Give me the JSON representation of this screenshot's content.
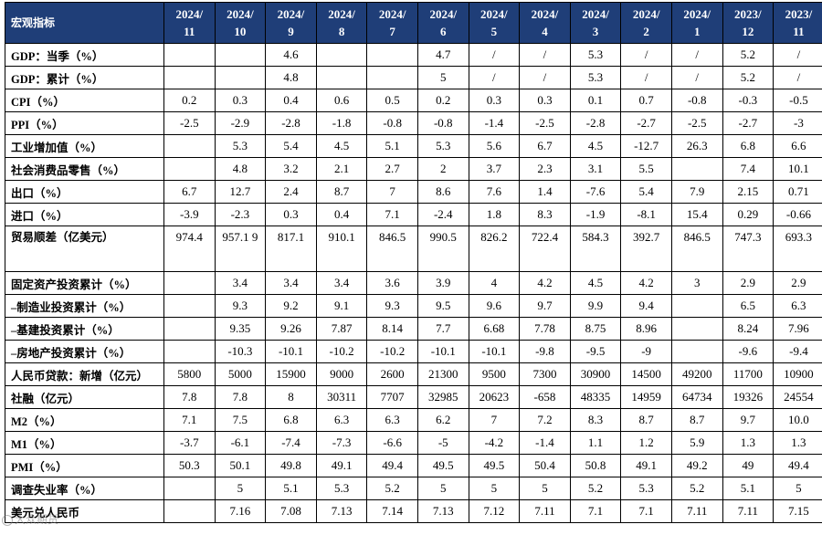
{
  "table": {
    "corner": "宏观指标",
    "columns": [
      [
        "2024/",
        "11"
      ],
      [
        "2024/",
        "10"
      ],
      [
        "2024/",
        "9"
      ],
      [
        "2024/",
        "8"
      ],
      [
        "2024/",
        "7"
      ],
      [
        "2024/",
        "6"
      ],
      [
        "2024/",
        "5"
      ],
      [
        "2024/",
        "4"
      ],
      [
        "2024/",
        "3"
      ],
      [
        "2024/",
        "2"
      ],
      [
        "2024/",
        "1"
      ],
      [
        "2023/",
        "12"
      ],
      [
        "2023/",
        "11"
      ]
    ],
    "rows": [
      {
        "label": "GDP：当季（%）",
        "values": [
          "",
          "",
          "4.6",
          "",
          "",
          "4.7",
          "/",
          "/",
          "5.3",
          "/",
          "/",
          "5.2",
          "/"
        ]
      },
      {
        "label": "GDP：累计（%）",
        "values": [
          "",
          "",
          "4.8",
          "",
          "",
          "5",
          "/",
          "/",
          "5.3",
          "/",
          "/",
          "5.2",
          "/"
        ]
      },
      {
        "label": "CPI（%）",
        "values": [
          "0.2",
          "0.3",
          "0.4",
          "0.6",
          "0.5",
          "0.2",
          "0.3",
          "0.3",
          "0.1",
          "0.7",
          "-0.8",
          "-0.3",
          "-0.5"
        ]
      },
      {
        "label": "PPI（%）",
        "values": [
          "-2.5",
          "-2.9",
          "-2.8",
          "-1.8",
          "-0.8",
          "-0.8",
          "-1.4",
          "-2.5",
          "-2.8",
          "-2.7",
          "-2.5",
          "-2.7",
          "-3"
        ]
      },
      {
        "label": "工业增加值（%）",
        "values": [
          "",
          "5.3",
          "5.4",
          "4.5",
          "5.1",
          "5.3",
          "5.6",
          "6.7",
          "4.5",
          "-12.7",
          "26.3",
          "6.8",
          "6.6"
        ]
      },
      {
        "label": "社会消费品零售（%）",
        "values": [
          "",
          "4.8",
          "3.2",
          "2.1",
          "2.7",
          "2",
          "3.7",
          "2.3",
          "3.1",
          "5.5",
          "",
          "7.4",
          "10.1"
        ]
      },
      {
        "label": "出口（%）",
        "values": [
          "6.7",
          "12.7",
          "2.4",
          "8.7",
          "7",
          "8.6",
          "7.6",
          "1.4",
          "-7.6",
          "5.4",
          "7.9",
          "2.15",
          "0.71"
        ]
      },
      {
        "label": "进口（%）",
        "values": [
          "-3.9",
          "-2.3",
          "0.3",
          "0.4",
          "7.1",
          "-2.4",
          "1.8",
          "8.3",
          "-1.9",
          "-8.1",
          "15.4",
          "0.29",
          "-0.66"
        ]
      },
      {
        "label": "贸易顺差（亿美元）",
        "tall": true,
        "values": [
          "974.4",
          "957.1 9",
          "817.1",
          "910.1",
          "846.5",
          "990.5",
          "826.2",
          "722.4",
          "584.3",
          "392.7",
          "846.5",
          "747.3",
          "693.3"
        ]
      },
      {
        "label": "固定资产投资累计（%）",
        "values": [
          "",
          "3.4",
          "3.4",
          "3.4",
          "3.6",
          "3.9",
          "4",
          "4.2",
          "4.5",
          "4.2",
          "3",
          "2.9",
          "2.9"
        ]
      },
      {
        "label": "–制造业投资累计（%）",
        "values": [
          "",
          "9.3",
          "9.2",
          "9.1",
          "9.3",
          "9.5",
          "9.6",
          "9.7",
          "9.9",
          "9.4",
          "",
          "6.5",
          "6.3"
        ]
      },
      {
        "label": "–基建投资累计（%）",
        "values": [
          "",
          "9.35",
          "9.26",
          "7.87",
          "8.14",
          "7.7",
          "6.68",
          "7.78",
          "8.75",
          "8.96",
          "",
          "8.24",
          "7.96"
        ]
      },
      {
        "label": "–房地产投资累计（%）",
        "values": [
          "",
          "-10.3",
          "-10.1",
          "-10.2",
          "-10.2",
          "-10.1",
          "-10.1",
          "-9.8",
          "-9.5",
          "-9",
          "",
          "-9.6",
          "-9.4"
        ]
      },
      {
        "label": "人民币贷款：新增（亿元）",
        "values": [
          "5800",
          "5000",
          "15900",
          "9000",
          "2600",
          "21300",
          "9500",
          "7300",
          "30900",
          "14500",
          "49200",
          "11700",
          "10900"
        ]
      },
      {
        "label": "社融（亿元）",
        "values": [
          "7.8",
          "7.8",
          "8",
          "30311",
          "7707",
          "32985",
          "20623",
          "-658",
          "48335",
          "14959",
          "64734",
          "19326",
          "24554"
        ]
      },
      {
        "label": "M2（%）",
        "values": [
          "7.1",
          "7.5",
          "6.8",
          "6.3",
          "6.3",
          "6.2",
          "7",
          "7.2",
          "8.3",
          "8.7",
          "8.7",
          "9.7",
          "10.0"
        ]
      },
      {
        "label": "M1（%）",
        "values": [
          "-3.7",
          "-6.1",
          "-7.4",
          "-7.3",
          "-6.6",
          "-5",
          "-4.2",
          "-1.4",
          "1.1",
          "1.2",
          "5.9",
          "1.3",
          "1.3"
        ]
      },
      {
        "label": "PMI（%）",
        "values": [
          "50.3",
          "50.1",
          "49.8",
          "49.1",
          "49.4",
          "49.5",
          "49.5",
          "50.4",
          "50.8",
          "49.1",
          "49.2",
          "49",
          "49.4"
        ]
      },
      {
        "label": "调查失业率（%）",
        "values": [
          "",
          "5",
          "5.1",
          "5.3",
          "5.2",
          "5",
          "5",
          "5",
          "5.2",
          "5.3",
          "5.2",
          "5.1",
          "5"
        ]
      },
      {
        "label": "美元兑人民币",
        "values": [
          "",
          "7.16",
          "7.08",
          "7.13",
          "7.14",
          "7.13",
          "7.12",
          "7.11",
          "7.1",
          "7.1",
          "7.11",
          "7.11",
          "7.15"
        ]
      }
    ]
  },
  "watermark": "大众期货"
}
